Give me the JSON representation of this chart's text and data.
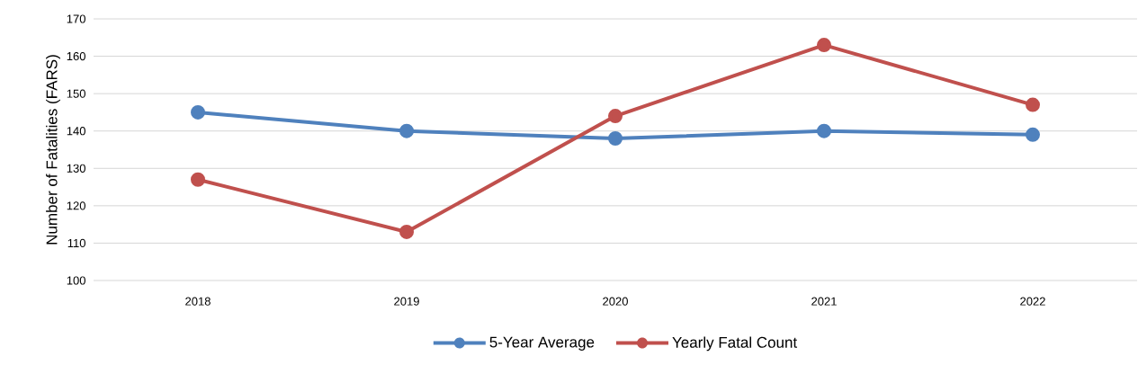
{
  "chart_data": {
    "type": "line",
    "ylabel": "Number of Fatalities (FARS)",
    "categories": [
      "2018",
      "2019",
      "2020",
      "2021",
      "2022"
    ],
    "series": [
      {
        "name": "5-Year Average",
        "color": "#4f81bd",
        "values": [
          145,
          140,
          138,
          140,
          139
        ]
      },
      {
        "name": "Yearly Fatal Count",
        "color": "#c0504d",
        "values": [
          127,
          113,
          144,
          163,
          147
        ]
      }
    ],
    "ylim": [
      100,
      170
    ],
    "yticks": [
      100,
      110,
      120,
      130,
      140,
      150,
      160,
      170
    ],
    "grid": "y",
    "legend": "bottom",
    "marker": "circle",
    "line_style": "solid"
  }
}
